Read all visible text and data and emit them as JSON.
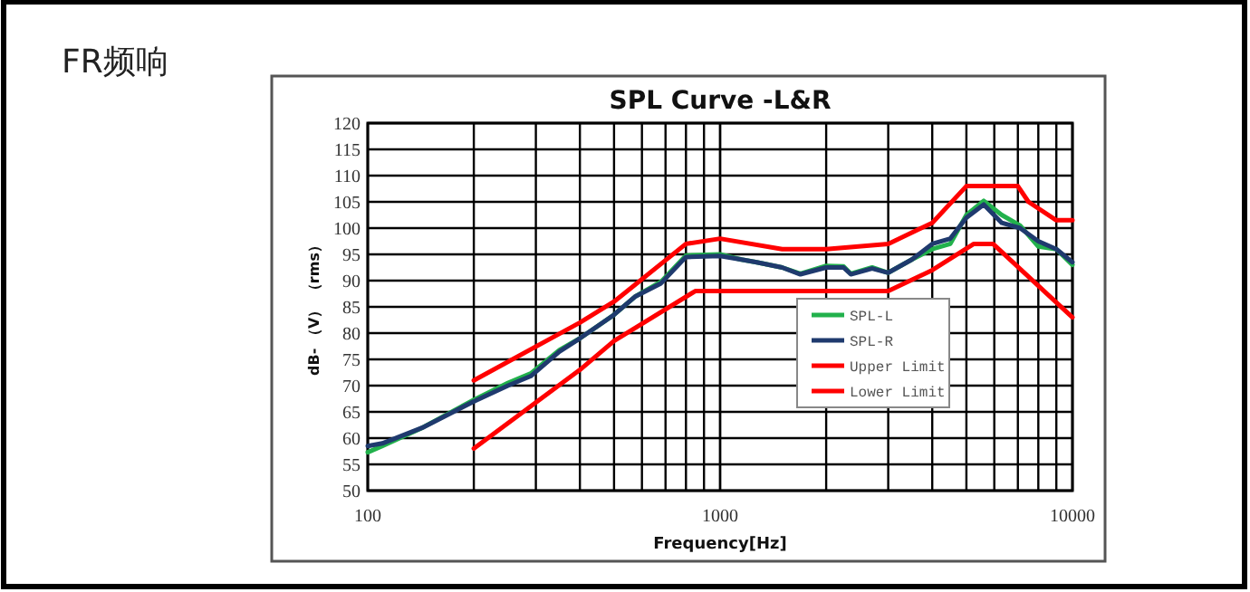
{
  "chart_data": {
    "type": "line",
    "title": "SPL  Curve -L&R",
    "subtitle": "FR频响",
    "xlabel": "Frequency[Hz]",
    "ylabel": "dB- （V） （rms）",
    "log": "x",
    "grid": true,
    "legend": "right",
    "marker": "none",
    "line_style": "solid",
    "xlim": [
      100,
      10000
    ],
    "xticks": [
      100,
      1000,
      10000
    ],
    "ylim": [
      50,
      120
    ],
    "yticks": [
      50,
      55,
      60,
      65,
      70,
      75,
      80,
      85,
      90,
      95,
      100,
      105,
      110,
      115,
      120
    ],
    "series": [
      {
        "name": "SPL-L",
        "color": "#22b14c",
        "x": [
          100,
          110,
          143,
          200,
          250,
          290,
          350,
          400,
          500,
          575,
          680,
          800,
          1000,
          1150,
          1270,
          1500,
          1690,
          2000,
          2240,
          2350,
          2700,
          3000,
          3500,
          4000,
          4500,
          5000,
          5600,
          6300,
          7100,
          8000,
          9000,
          10000
        ],
        "values": [
          57.3,
          58.5,
          62,
          67.3,
          70.5,
          72.3,
          76.8,
          79,
          83.5,
          87,
          89.8,
          94.8,
          95,
          94,
          93.5,
          92.5,
          91.3,
          92.8,
          92.7,
          91.3,
          92.5,
          91.5,
          94,
          96,
          97,
          102.5,
          105.2,
          102.5,
          100.5,
          96.5,
          96,
          93
        ]
      },
      {
        "name": "SPL-R",
        "color": "#1f3a6e",
        "x": [
          100,
          110,
          143,
          200,
          250,
          290,
          350,
          400,
          500,
          575,
          680,
          800,
          1000,
          1150,
          1270,
          1500,
          1690,
          2000,
          2240,
          2350,
          2700,
          3000,
          3500,
          4000,
          4500,
          5000,
          5600,
          6300,
          7100,
          8000,
          9000,
          10000
        ],
        "values": [
          58.5,
          59,
          62,
          67,
          70,
          71.8,
          76.5,
          79,
          83.5,
          87,
          89.5,
          94.5,
          94.7,
          94,
          93.5,
          92.5,
          91.2,
          92.5,
          92.5,
          91.2,
          92.3,
          91.5,
          94,
          97,
          98,
          102,
          104.5,
          101,
          100,
          97.5,
          96,
          93.5
        ]
      },
      {
        "name": "Upper Limit",
        "color": "#ff0000",
        "x": [
          200,
          400,
          500,
          800,
          1000,
          1500,
          2000,
          3000,
          4000,
          5000,
          7000,
          7500,
          9000,
          10000
        ],
        "values": [
          71,
          82,
          86,
          97,
          98,
          96,
          96,
          97,
          101,
          108,
          108,
          105,
          101.5,
          101.5
        ]
      },
      {
        "name": "Lower Limit",
        "color": "#ff0000",
        "x": [
          200,
          400,
          500,
          850,
          3000,
          4000,
          5250,
          5950,
          10000
        ],
        "values": [
          58,
          73,
          78.5,
          88,
          88,
          92,
          97,
          97,
          83
        ]
      }
    ]
  }
}
